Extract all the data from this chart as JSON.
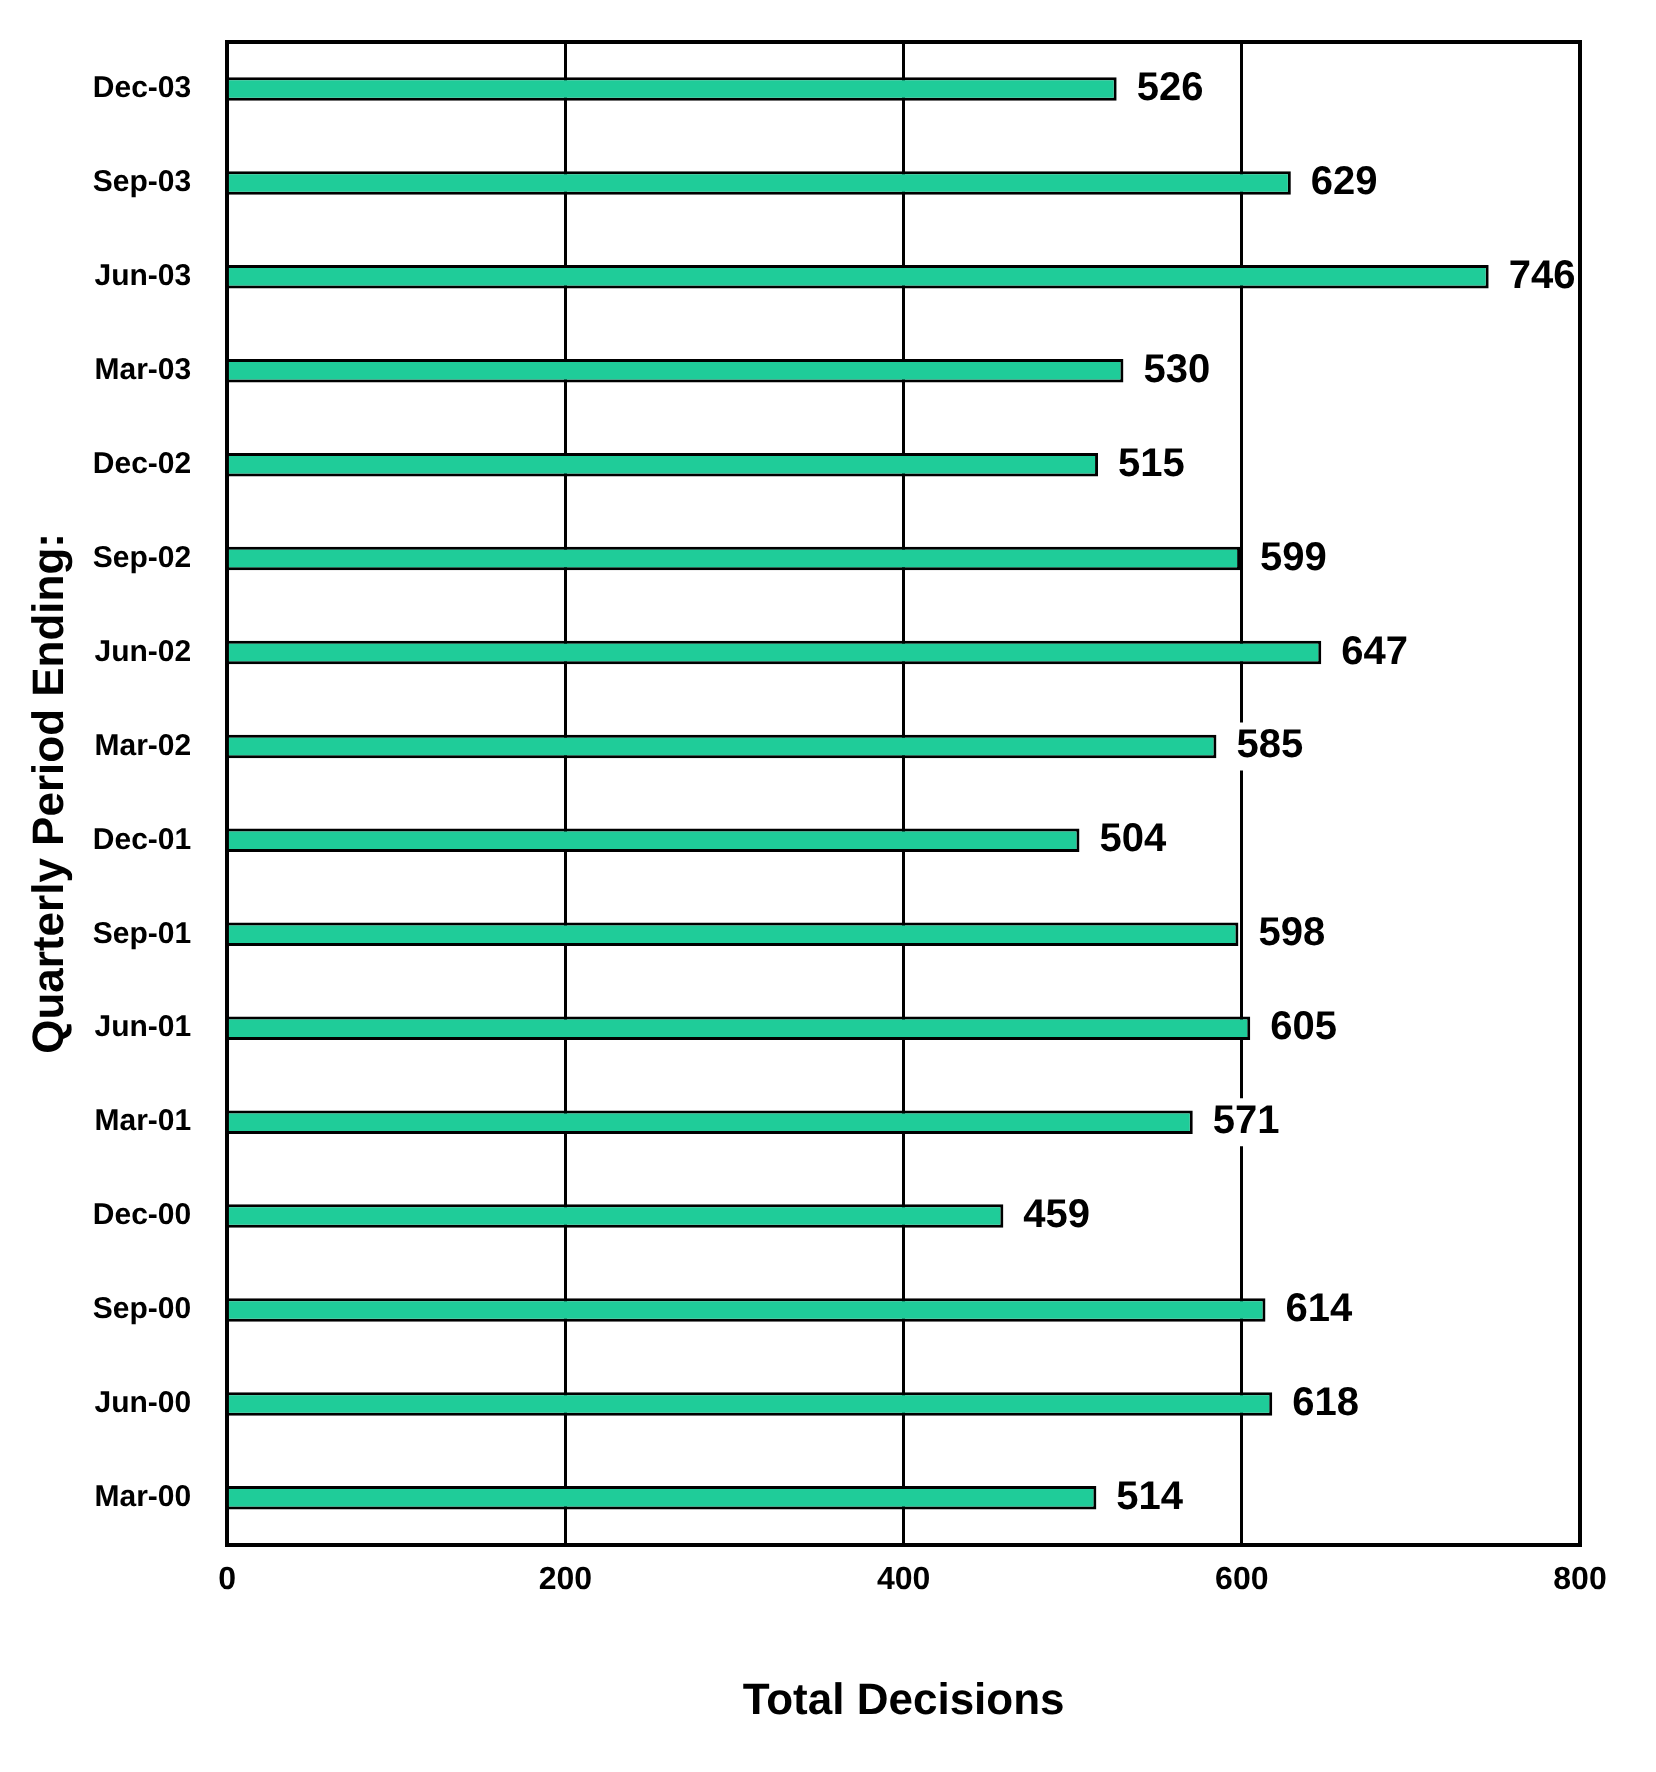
{
  "chart_data": {
    "type": "bar",
    "orientation": "horizontal",
    "xlabel": "Total Decisions",
    "ylabel": "Quarterly Period Ending:",
    "categories": [
      "Dec-03",
      "Sep-03",
      "Jun-03",
      "Mar-03",
      "Dec-02",
      "Sep-02",
      "Jun-02",
      "Mar-02",
      "Dec-01",
      "Sep-01",
      "Jun-01",
      "Mar-01",
      "Dec-00",
      "Sep-00",
      "Jun-00",
      "Mar-00"
    ],
    "values": [
      526,
      629,
      746,
      530,
      515,
      599,
      647,
      585,
      504,
      598,
      605,
      571,
      459,
      614,
      618,
      514
    ],
    "color": "#1fcc99",
    "xlim": [
      0,
      800
    ],
    "xticks": [
      0,
      200,
      400,
      600,
      800
    ],
    "grid": "x",
    "data_labels": true,
    "legend": false
  }
}
